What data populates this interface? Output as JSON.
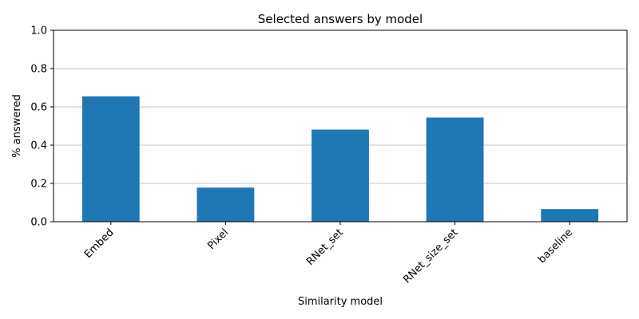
{
  "chart_data": {
    "type": "bar",
    "title": "Selected answers by model",
    "xlabel": "Similarity model",
    "ylabel": "% answered",
    "categories": [
      "Embed",
      "Pixel",
      "RNet_set",
      "RNet_size_set",
      "baseline"
    ],
    "values": [
      0.655,
      0.178,
      0.481,
      0.544,
      0.066
    ],
    "ylim": [
      0,
      1.0
    ],
    "yticks": [
      "0.0",
      "0.2",
      "0.4",
      "0.6",
      "0.8",
      "1.0"
    ],
    "grid": "y",
    "bar_color": "#1f77b4"
  }
}
